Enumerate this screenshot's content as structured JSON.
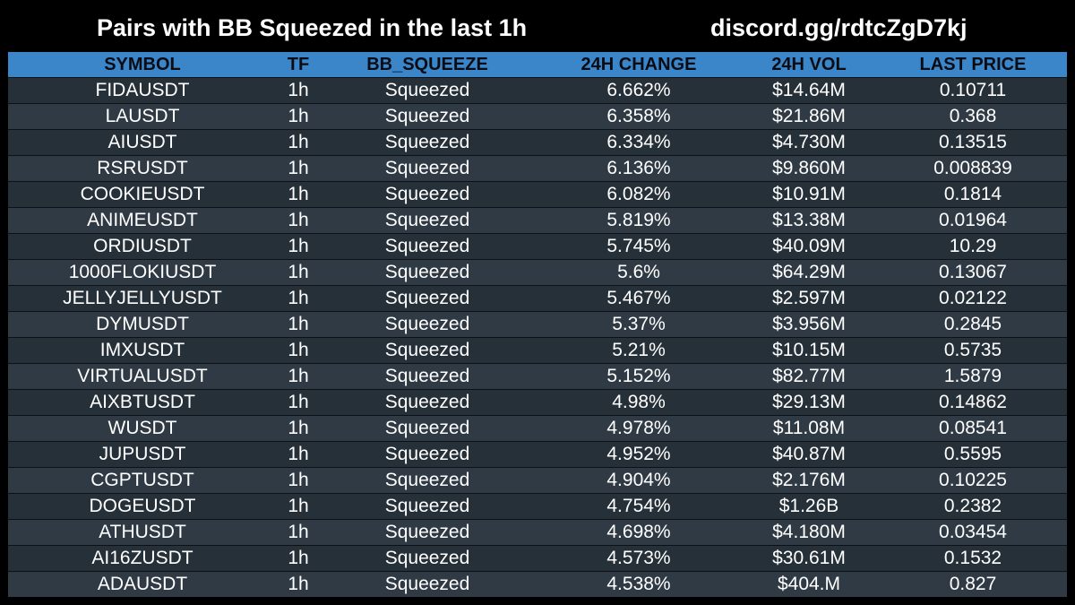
{
  "header": {
    "title": "Pairs with BB Squeezed in the last 1h",
    "invite": "discord.gg/rdtcZgD7kj"
  },
  "colors": {
    "header_bar": "#3a86c8",
    "row_dark": "#263038",
    "row_light": "#2f3a44",
    "background": "#000000"
  },
  "table": {
    "columns": [
      "SYMBOL",
      "TF",
      "BB_SQUEEZE",
      "24H CHANGE",
      "24H VOL",
      "LAST PRICE"
    ],
    "rows": [
      [
        "FIDAUSDT",
        "1h",
        "Squeezed",
        "6.662%",
        "$14.64M",
        "0.10711"
      ],
      [
        "LAUSDT",
        "1h",
        "Squeezed",
        "6.358%",
        "$21.86M",
        "0.368"
      ],
      [
        "AIUSDT",
        "1h",
        "Squeezed",
        "6.334%",
        "$4.730M",
        "0.13515"
      ],
      [
        "RSRUSDT",
        "1h",
        "Squeezed",
        "6.136%",
        "$9.860M",
        "0.008839"
      ],
      [
        "COOKIEUSDT",
        "1h",
        "Squeezed",
        "6.082%",
        "$10.91M",
        "0.1814"
      ],
      [
        "ANIMEUSDT",
        "1h",
        "Squeezed",
        "5.819%",
        "$13.38M",
        "0.01964"
      ],
      [
        "ORDIUSDT",
        "1h",
        "Squeezed",
        "5.745%",
        "$40.09M",
        "10.29"
      ],
      [
        "1000FLOKIUSDT",
        "1h",
        "Squeezed",
        "5.6%",
        "$64.29M",
        "0.13067"
      ],
      [
        "JELLYJELLYUSDT",
        "1h",
        "Squeezed",
        "5.467%",
        "$2.597M",
        "0.02122"
      ],
      [
        "DYMUSDT",
        "1h",
        "Squeezed",
        "5.37%",
        "$3.956M",
        "0.2845"
      ],
      [
        "IMXUSDT",
        "1h",
        "Squeezed",
        "5.21%",
        "$10.15M",
        "0.5735"
      ],
      [
        "VIRTUALUSDT",
        "1h",
        "Squeezed",
        "5.152%",
        "$82.77M",
        "1.5879"
      ],
      [
        "AIXBTUSDT",
        "1h",
        "Squeezed",
        "4.98%",
        "$29.13M",
        "0.14862"
      ],
      [
        "WUSDT",
        "1h",
        "Squeezed",
        "4.978%",
        "$11.08M",
        "0.08541"
      ],
      [
        "JUPUSDT",
        "1h",
        "Squeezed",
        "4.952%",
        "$40.87M",
        "0.5595"
      ],
      [
        "CGPTUSDT",
        "1h",
        "Squeezed",
        "4.904%",
        "$2.176M",
        "0.10225"
      ],
      [
        "DOGEUSDT",
        "1h",
        "Squeezed",
        "4.754%",
        "$1.26B",
        "0.2382"
      ],
      [
        "ATHUSDT",
        "1h",
        "Squeezed",
        "4.698%",
        "$4.180M",
        "0.03454"
      ],
      [
        "AI16ZUSDT",
        "1h",
        "Squeezed",
        "4.573%",
        "$30.61M",
        "0.1532"
      ],
      [
        "ADAUSDT",
        "1h",
        "Squeezed",
        "4.538%",
        "$404.M",
        "0.827"
      ]
    ]
  }
}
